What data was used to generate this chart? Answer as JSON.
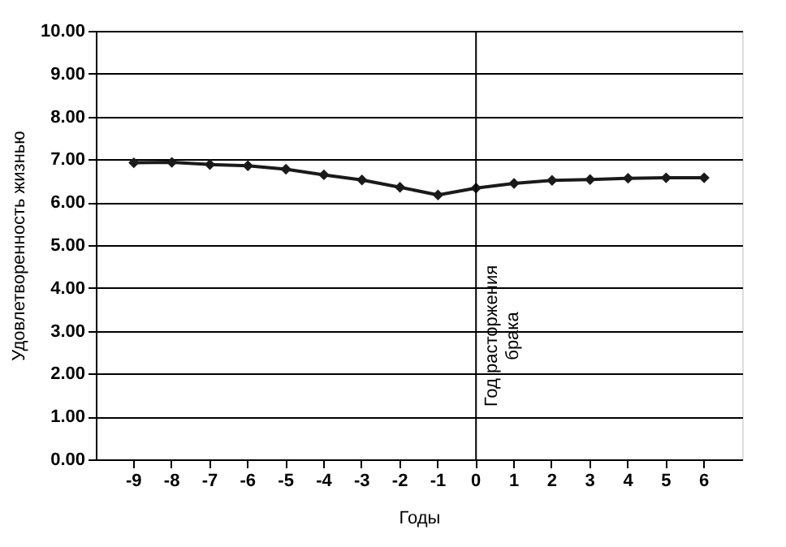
{
  "chart_data": {
    "type": "line",
    "xlabel": "Годы",
    "ylabel": "Удовлетворенность жизнью",
    "categories": [
      "-9",
      "-8",
      "-7",
      "-6",
      "-5",
      "-4",
      "-3",
      "-2",
      "-1",
      "0",
      "1",
      "2",
      "3",
      "4",
      "5",
      "6"
    ],
    "series": [
      {
        "color": "#1a1a1a",
        "values": [
          6.92,
          6.93,
          6.88,
          6.85,
          6.77,
          6.64,
          6.52,
          6.35,
          6.17,
          6.33,
          6.44,
          6.51,
          6.53,
          6.56,
          6.57,
          6.57
        ]
      }
    ],
    "ylim": [
      0,
      10
    ],
    "yticks": [
      {
        "value": 0,
        "label": "0.00"
      },
      {
        "value": 1,
        "label": "1.00"
      },
      {
        "value": 2,
        "label": "2.00"
      },
      {
        "value": 3,
        "label": "3.00"
      },
      {
        "value": 4,
        "label": "4.00"
      },
      {
        "value": 5,
        "label": "5.00"
      },
      {
        "value": 6,
        "label": "6.00"
      },
      {
        "value": 7,
        "label": "7.00"
      },
      {
        "value": 8,
        "label": "8.00"
      },
      {
        "value": 9,
        "label": "9.00"
      },
      {
        "value": 10,
        "label": "10.00"
      }
    ],
    "ref_lines": [
      {
        "axis": "x",
        "value": "0",
        "label": "Год расторжения брака",
        "color": "#000000"
      }
    ],
    "grid": "y",
    "marker": "diamond",
    "line_style": "solid"
  }
}
